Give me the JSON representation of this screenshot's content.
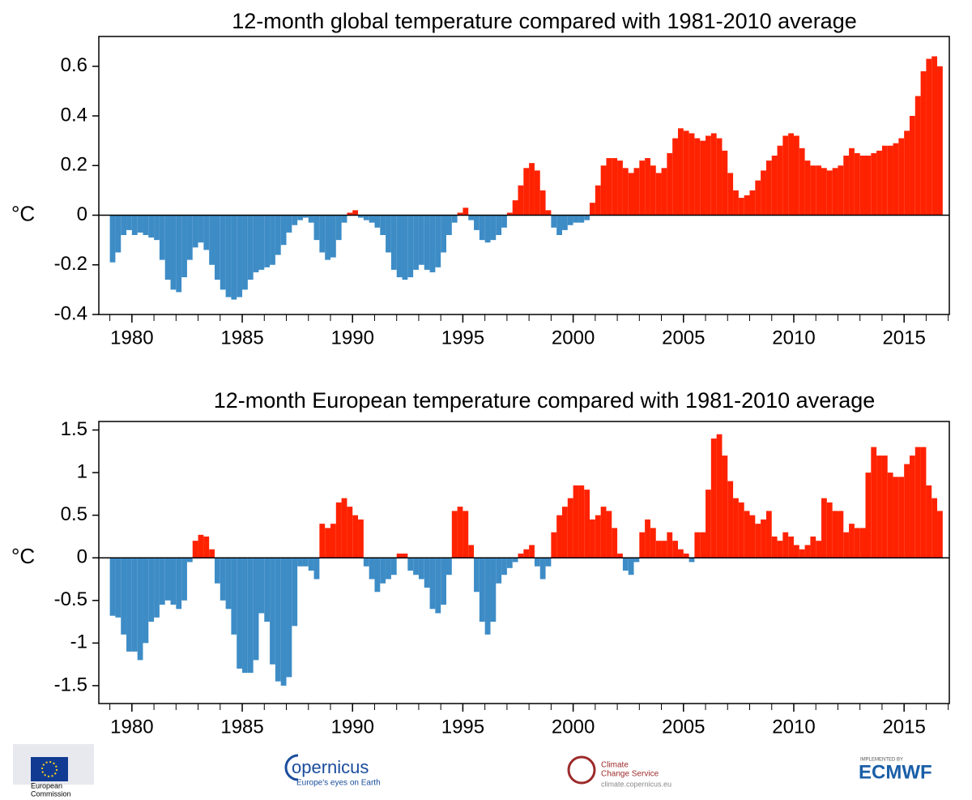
{
  "chart_data": [
    {
      "type": "bar",
      "title": "12-month global temperature compared with 1981-2010 average",
      "y_label": "°C",
      "positive_color": "#ff2200",
      "negative_color": "#3d8cc6",
      "xlim": [
        1978.5,
        2017.05
      ],
      "ylim": [
        -0.4,
        0.72
      ],
      "bar_width": 0.25,
      "xticks": [
        1980,
        1985,
        1990,
        1995,
        2000,
        2005,
        2010,
        2015
      ],
      "xminorticks": [
        1979,
        1980,
        1981,
        1982,
        1983,
        1984,
        1985,
        1986,
        1987,
        1988,
        1989,
        1990,
        1991,
        1992,
        1993,
        1994,
        1995,
        1996,
        1997,
        1998,
        1999,
        2000,
        2001,
        2002,
        2003,
        2004,
        2005,
        2006,
        2007,
        2008,
        2009,
        2010,
        2011,
        2012,
        2013,
        2014,
        2015,
        2016,
        2017
      ],
      "yticks": [
        -0.4,
        -0.2,
        0,
        0.2,
        0.4,
        0.6
      ],
      "x": [
        1979,
        1979.25,
        1979.5,
        1979.75,
        1980,
        1980.25,
        1980.5,
        1980.75,
        1981,
        1981.25,
        1981.5,
        1981.75,
        1982,
        1982.25,
        1982.5,
        1982.75,
        1983,
        1983.25,
        1983.5,
        1983.75,
        1984,
        1984.25,
        1984.5,
        1984.75,
        1985,
        1985.25,
        1985.5,
        1985.75,
        1986,
        1986.25,
        1986.5,
        1986.75,
        1987,
        1987.25,
        1987.5,
        1987.75,
        1988,
        1988.25,
        1988.5,
        1988.75,
        1989,
        1989.25,
        1989.5,
        1989.75,
        1990,
        1990.25,
        1990.5,
        1990.75,
        1991,
        1991.25,
        1991.5,
        1991.75,
        1992,
        1992.25,
        1992.5,
        1992.75,
        1993,
        1993.25,
        1993.5,
        1993.75,
        1994,
        1994.25,
        1994.5,
        1994.75,
        1995,
        1995.25,
        1995.5,
        1995.75,
        1996,
        1996.25,
        1996.5,
        1996.75,
        1997,
        1997.25,
        1997.5,
        1997.75,
        1998,
        1998.25,
        1998.5,
        1998.75,
        1999,
        1999.25,
        1999.5,
        1999.75,
        2000,
        2000.25,
        2000.5,
        2000.75,
        2001,
        2001.25,
        2001.5,
        2001.75,
        2002,
        2002.25,
        2002.5,
        2002.75,
        2003,
        2003.25,
        2003.5,
        2003.75,
        2004,
        2004.25,
        2004.5,
        2004.75,
        2005,
        2005.25,
        2005.5,
        2005.75,
        2006,
        2006.25,
        2006.5,
        2006.75,
        2007,
        2007.25,
        2007.5,
        2007.75,
        2008,
        2008.25,
        2008.5,
        2008.75,
        2009,
        2009.25,
        2009.5,
        2009.75,
        2010,
        2010.25,
        2010.5,
        2010.75,
        2011,
        2011.25,
        2011.5,
        2011.75,
        2012,
        2012.25,
        2012.5,
        2012.75,
        2013,
        2013.25,
        2013.5,
        2013.75,
        2014,
        2014.25,
        2014.5,
        2014.75,
        2015,
        2015.25,
        2015.5,
        2015.75,
        2016,
        2016.25,
        2016.5
      ],
      "values": [
        -0.19,
        -0.15,
        -0.08,
        -0.06,
        -0.08,
        -0.07,
        -0.08,
        -0.09,
        -0.1,
        -0.18,
        -0.26,
        -0.3,
        -0.31,
        -0.25,
        -0.18,
        -0.13,
        -0.11,
        -0.14,
        -0.2,
        -0.26,
        -0.3,
        -0.33,
        -0.34,
        -0.33,
        -0.3,
        -0.26,
        -0.23,
        -0.22,
        -0.21,
        -0.2,
        -0.16,
        -0.12,
        -0.07,
        -0.04,
        -0.02,
        -0.01,
        -0.03,
        -0.1,
        -0.15,
        -0.18,
        -0.17,
        -0.1,
        -0.03,
        0.01,
        0.02,
        -0.01,
        -0.02,
        -0.03,
        -0.05,
        -0.08,
        -0.15,
        -0.22,
        -0.25,
        -0.26,
        -0.25,
        -0.22,
        -0.2,
        -0.22,
        -0.23,
        -0.21,
        -0.15,
        -0.08,
        -0.03,
        0.01,
        0.03,
        -0.02,
        -0.06,
        -0.1,
        -0.11,
        -0.1,
        -0.08,
        -0.05,
        0.01,
        0.06,
        0.12,
        0.19,
        0.21,
        0.18,
        0.1,
        0.02,
        -0.05,
        -0.08,
        -0.06,
        -0.04,
        -0.03,
        -0.03,
        -0.02,
        0.05,
        0.12,
        0.2,
        0.23,
        0.23,
        0.22,
        0.19,
        0.17,
        0.19,
        0.22,
        0.23,
        0.2,
        0.17,
        0.19,
        0.25,
        0.31,
        0.35,
        0.34,
        0.33,
        0.31,
        0.3,
        0.32,
        0.33,
        0.31,
        0.26,
        0.17,
        0.1,
        0.07,
        0.08,
        0.1,
        0.14,
        0.18,
        0.22,
        0.24,
        0.28,
        0.32,
        0.33,
        0.32,
        0.27,
        0.22,
        0.2,
        0.2,
        0.19,
        0.18,
        0.19,
        0.2,
        0.24,
        0.27,
        0.25,
        0.24,
        0.24,
        0.25,
        0.26,
        0.28,
        0.28,
        0.29,
        0.31,
        0.34,
        0.4,
        0.48,
        0.58,
        0.63,
        0.64,
        0.6
      ]
    },
    {
      "type": "bar",
      "title": "12-month European temperature compared with 1981-2010 average",
      "y_label": "°C",
      "positive_color": "#ff2200",
      "negative_color": "#3d8cc6",
      "xlim": [
        1978.5,
        2017.05
      ],
      "ylim": [
        -1.71,
        1.6
      ],
      "bar_width": 0.25,
      "xticks": [
        1980,
        1985,
        1990,
        1995,
        2000,
        2005,
        2010,
        2015
      ],
      "xminorticks": [
        1979,
        1980,
        1981,
        1982,
        1983,
        1984,
        1985,
        1986,
        1987,
        1988,
        1989,
        1990,
        1991,
        1992,
        1993,
        1994,
        1995,
        1996,
        1997,
        1998,
        1999,
        2000,
        2001,
        2002,
        2003,
        2004,
        2005,
        2006,
        2007,
        2008,
        2009,
        2010,
        2011,
        2012,
        2013,
        2014,
        2015,
        2016,
        2017
      ],
      "yticks": [
        -1.5,
        -1,
        -0.5,
        0,
        0.5,
        1,
        1.5
      ],
      "x": [
        1979,
        1979.25,
        1979.5,
        1979.75,
        1980,
        1980.25,
        1980.5,
        1980.75,
        1981,
        1981.25,
        1981.5,
        1981.75,
        1982,
        1982.25,
        1982.5,
        1982.75,
        1983,
        1983.25,
        1983.5,
        1983.75,
        1984,
        1984.25,
        1984.5,
        1984.75,
        1985,
        1985.25,
        1985.5,
        1985.75,
        1986,
        1986.25,
        1986.5,
        1986.75,
        1987,
        1987.25,
        1987.5,
        1987.75,
        1988,
        1988.25,
        1988.5,
        1988.75,
        1989,
        1989.25,
        1989.5,
        1989.75,
        1990,
        1990.25,
        1990.5,
        1990.75,
        1991,
        1991.25,
        1991.5,
        1991.75,
        1992,
        1992.25,
        1992.5,
        1992.75,
        1993,
        1993.25,
        1993.5,
        1993.75,
        1994,
        1994.25,
        1994.5,
        1994.75,
        1995,
        1995.25,
        1995.5,
        1995.75,
        1996,
        1996.25,
        1996.5,
        1996.75,
        1997,
        1997.25,
        1997.5,
        1997.75,
        1998,
        1998.25,
        1998.5,
        1998.75,
        1999,
        1999.25,
        1999.5,
        1999.75,
        2000,
        2000.25,
        2000.5,
        2000.75,
        2001,
        2001.25,
        2001.5,
        2001.75,
        2002,
        2002.25,
        2002.5,
        2002.75,
        2003,
        2003.25,
        2003.5,
        2003.75,
        2004,
        2004.25,
        2004.5,
        2004.75,
        2005,
        2005.25,
        2005.5,
        2005.75,
        2006,
        2006.25,
        2006.5,
        2006.75,
        2007,
        2007.25,
        2007.5,
        2007.75,
        2008,
        2008.25,
        2008.5,
        2008.75,
        2009,
        2009.25,
        2009.5,
        2009.75,
        2010,
        2010.25,
        2010.5,
        2010.75,
        2011,
        2011.25,
        2011.5,
        2011.75,
        2012,
        2012.25,
        2012.5,
        2012.75,
        2013,
        2013.25,
        2013.5,
        2013.75,
        2014,
        2014.25,
        2014.5,
        2014.75,
        2015,
        2015.25,
        2015.5,
        2015.75,
        2016,
        2016.25,
        2016.5
      ],
      "values": [
        -0.68,
        -0.7,
        -0.9,
        -1.1,
        -1.1,
        -1.2,
        -1,
        -0.75,
        -0.7,
        -0.55,
        -0.5,
        -0.55,
        -0.6,
        -0.5,
        -0.05,
        0.2,
        0.27,
        0.25,
        0.1,
        -0.3,
        -0.5,
        -0.6,
        -0.9,
        -1.3,
        -1.35,
        -1.35,
        -1.2,
        -0.65,
        -0.75,
        -1.25,
        -1.45,
        -1.5,
        -1.4,
        -0.8,
        -0.1,
        -0.1,
        -0.15,
        -0.25,
        0.4,
        0.35,
        0.4,
        0.65,
        0.7,
        0.6,
        0.5,
        0.45,
        -0.1,
        -0.25,
        -0.4,
        -0.3,
        -0.25,
        -0.2,
        0.05,
        0.05,
        -0.15,
        -0.2,
        -0.25,
        -0.35,
        -0.6,
        -0.65,
        -0.55,
        -0.2,
        0.55,
        0.6,
        0.55,
        0.15,
        -0.4,
        -0.75,
        -0.9,
        -0.75,
        -0.3,
        -0.2,
        -0.12,
        -0.05,
        0.05,
        0.1,
        0.15,
        -0.1,
        -0.25,
        -0.1,
        0.3,
        0.5,
        0.6,
        0.7,
        0.85,
        0.85,
        0.8,
        0.45,
        0.5,
        0.6,
        0.55,
        0.35,
        0.05,
        -0.15,
        -0.2,
        -0.05,
        0.3,
        0.45,
        0.35,
        0.2,
        0.2,
        0.3,
        0.2,
        0.1,
        0.05,
        -0.05,
        0.3,
        0.3,
        0.8,
        1.4,
        1.45,
        1.2,
        0.9,
        0.7,
        0.65,
        0.55,
        0.5,
        0.4,
        0.45,
        0.55,
        0.25,
        0.2,
        0.3,
        0.25,
        0.15,
        0.1,
        0.15,
        0.25,
        0.2,
        0.7,
        0.65,
        0.55,
        0.55,
        0.3,
        0.4,
        0.35,
        0.35,
        1,
        1.3,
        1.2,
        1.2,
        1,
        0.95,
        0.95,
        1.1,
        1.2,
        1.3,
        1.3,
        0.85,
        0.7,
        0.55
      ]
    }
  ],
  "logos": {
    "ec": [
      "European",
      "Commission"
    ],
    "copernicus": "opernicus",
    "copernicus_tag": "Europe's eyes on Earth",
    "c3s": [
      "Climate",
      "Change Service"
    ],
    "c3s_url": "climate.copernicus.eu",
    "ecmwf_tag": "IMPLEMENTED BY",
    "ecmwf": "ECMWF"
  }
}
